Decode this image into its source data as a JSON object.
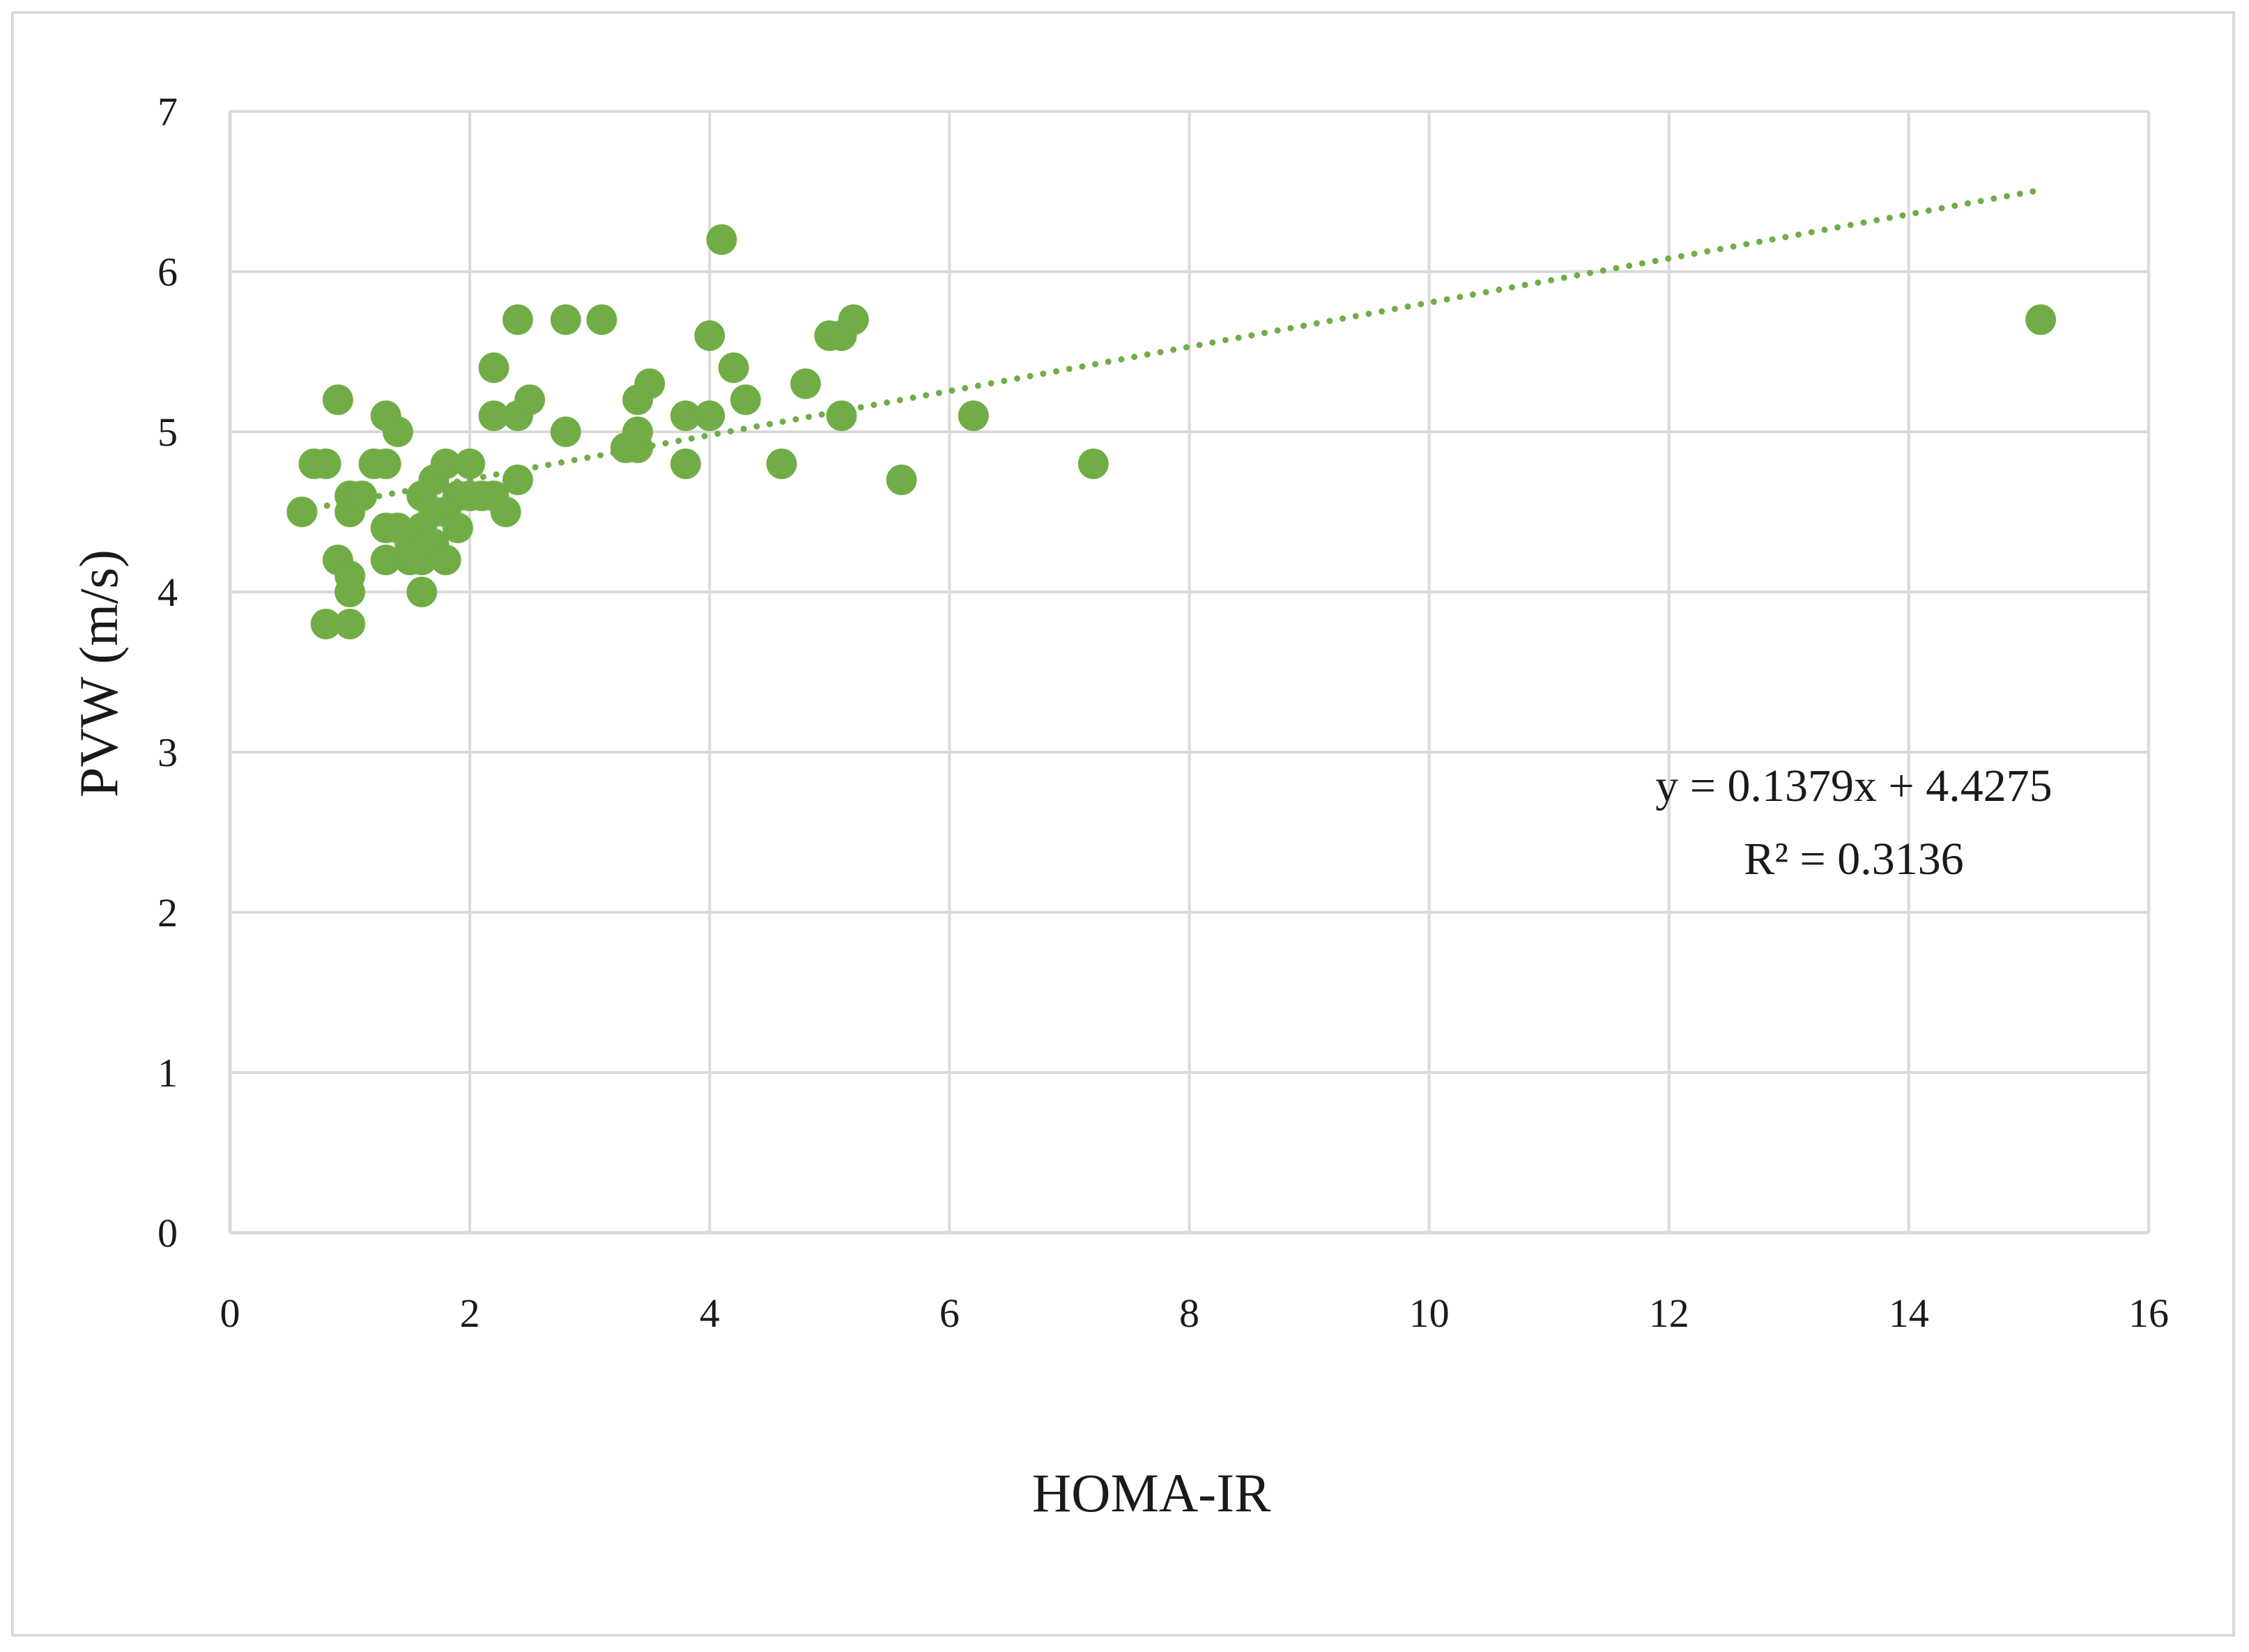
{
  "chart_data": {
    "type": "scatter",
    "title": "",
    "xlabel": "HOMA-IR",
    "ylabel": "PVW (m/s)",
    "xlim": [
      0,
      16
    ],
    "ylim": [
      0,
      7
    ],
    "x_ticks": [
      0,
      2,
      4,
      6,
      8,
      10,
      12,
      14,
      16
    ],
    "y_ticks": [
      0,
      1,
      2,
      3,
      4,
      5,
      6,
      7
    ],
    "grid": true,
    "legend": "none",
    "colors": {
      "points": "#70ad47",
      "trendline": "#70ad47",
      "grid": "#d9d9d9",
      "frame": "#d9d9d9"
    },
    "series": [
      {
        "points": [
          [
            0.6,
            4.5
          ],
          [
            0.7,
            4.8
          ],
          [
            0.8,
            4.8
          ],
          [
            0.9,
            5.2
          ],
          [
            0.9,
            4.2
          ],
          [
            0.8,
            3.8
          ],
          [
            1.0,
            3.8
          ],
          [
            1.0,
            4.0
          ],
          [
            1.0,
            4.1
          ],
          [
            1.0,
            4.5
          ],
          [
            1.0,
            4.6
          ],
          [
            1.1,
            4.6
          ],
          [
            1.2,
            4.8
          ],
          [
            1.3,
            4.8
          ],
          [
            1.3,
            5.1
          ],
          [
            1.4,
            5.0
          ],
          [
            1.3,
            4.4
          ],
          [
            1.3,
            4.2
          ],
          [
            1.4,
            4.4
          ],
          [
            1.5,
            4.3
          ],
          [
            1.5,
            4.2
          ],
          [
            1.6,
            4.0
          ],
          [
            1.6,
            4.2
          ],
          [
            1.6,
            4.4
          ],
          [
            1.6,
            4.6
          ],
          [
            1.7,
            4.3
          ],
          [
            1.7,
            4.5
          ],
          [
            1.7,
            4.7
          ],
          [
            1.8,
            4.2
          ],
          [
            1.8,
            4.5
          ],
          [
            1.8,
            4.8
          ],
          [
            1.9,
            4.4
          ],
          [
            1.9,
            4.6
          ],
          [
            2.0,
            4.8
          ],
          [
            2.0,
            4.6
          ],
          [
            2.1,
            4.6
          ],
          [
            2.2,
            4.6
          ],
          [
            2.2,
            5.1
          ],
          [
            2.2,
            5.4
          ],
          [
            2.3,
            4.5
          ],
          [
            2.4,
            4.7
          ],
          [
            2.4,
            5.1
          ],
          [
            2.4,
            5.7
          ],
          [
            2.5,
            5.2
          ],
          [
            2.8,
            5.0
          ],
          [
            2.8,
            5.7
          ],
          [
            3.1,
            5.7
          ],
          [
            3.3,
            4.9
          ],
          [
            3.4,
            4.9
          ],
          [
            3.4,
            5.0
          ],
          [
            3.4,
            5.2
          ],
          [
            3.5,
            5.3
          ],
          [
            3.8,
            4.8
          ],
          [
            3.8,
            5.1
          ],
          [
            4.0,
            5.1
          ],
          [
            4.0,
            5.6
          ],
          [
            4.1,
            6.2
          ],
          [
            4.2,
            5.4
          ],
          [
            4.3,
            5.2
          ],
          [
            4.6,
            4.8
          ],
          [
            4.8,
            5.3
          ],
          [
            5.0,
            5.6
          ],
          [
            5.1,
            5.6
          ],
          [
            5.1,
            5.1
          ],
          [
            5.2,
            5.7
          ],
          [
            5.6,
            4.7
          ],
          [
            6.2,
            5.1
          ],
          [
            7.2,
            4.8
          ],
          [
            15.1,
            5.7
          ]
        ]
      }
    ],
    "trendline": {
      "style": "dotted",
      "slope": 0.1379,
      "intercept": 4.4275,
      "x_range": [
        0.7,
        15.1
      ],
      "equation_text": "y = 0.1379x + 4.4275",
      "r2_text": "R² = 0.3136"
    }
  }
}
